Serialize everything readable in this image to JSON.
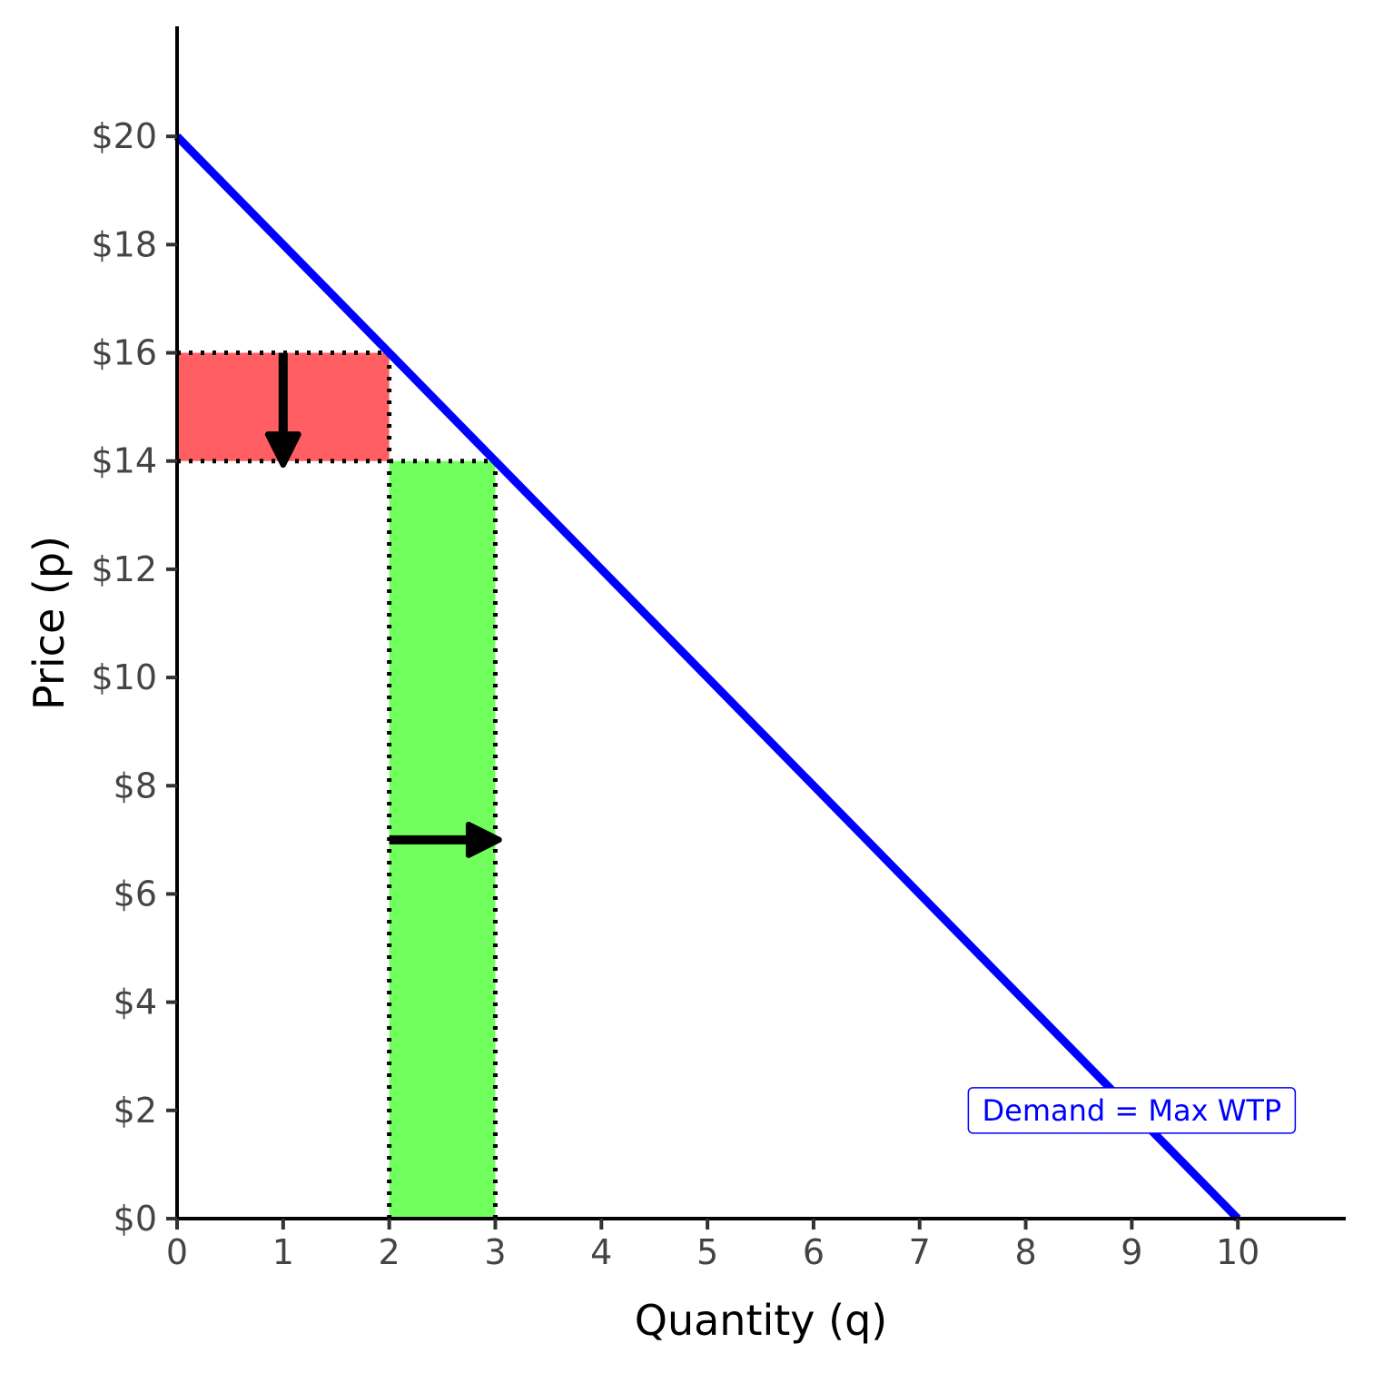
{
  "chart_data": {
    "type": "line",
    "xlabel": "Quantity (q)",
    "ylabel": "Price (p)",
    "xlim": [
      0,
      11
    ],
    "ylim": [
      0,
      22
    ],
    "x_ticks": [
      0,
      1,
      2,
      3,
      4,
      5,
      6,
      7,
      8,
      9,
      10
    ],
    "x_tick_labels": [
      "0",
      "1",
      "2",
      "3",
      "4",
      "5",
      "6",
      "7",
      "8",
      "9",
      "10"
    ],
    "y_ticks": [
      0,
      2,
      4,
      6,
      8,
      10,
      12,
      14,
      16,
      18,
      20
    ],
    "y_tick_labels": [
      "$0",
      "$2",
      "$4",
      "$6",
      "$8",
      "$10",
      "$12",
      "$14",
      "$16",
      "$18",
      "$20"
    ],
    "grid": false,
    "series": [
      {
        "name": "Demand = Max WTP",
        "color": "#0000ff",
        "x": [
          0,
          10
        ],
        "y": [
          20,
          0
        ]
      }
    ],
    "shaded_regions": [
      {
        "color": "#ff5e62",
        "x": [
          0,
          2
        ],
        "y": [
          14,
          16
        ]
      },
      {
        "color": "#70ff5c",
        "x": [
          2,
          3
        ],
        "y": [
          0,
          14
        ]
      }
    ],
    "dotted_lines": [
      {
        "x": [
          0,
          2
        ],
        "y": [
          16,
          16
        ]
      },
      {
        "x": [
          0,
          3
        ],
        "y": [
          14,
          14
        ]
      },
      {
        "x": [
          2,
          2
        ],
        "y": [
          0,
          16
        ]
      },
      {
        "x": [
          3,
          3
        ],
        "y": [
          0,
          14
        ]
      }
    ],
    "arrows": [
      {
        "from": [
          1,
          16
        ],
        "to": [
          1,
          14
        ]
      },
      {
        "from": [
          2,
          7
        ],
        "to": [
          3,
          7
        ]
      }
    ],
    "annotations": [
      {
        "text": "Demand = Max WTP",
        "x": 9,
        "y": 2,
        "color": "#0000ff"
      }
    ]
  }
}
